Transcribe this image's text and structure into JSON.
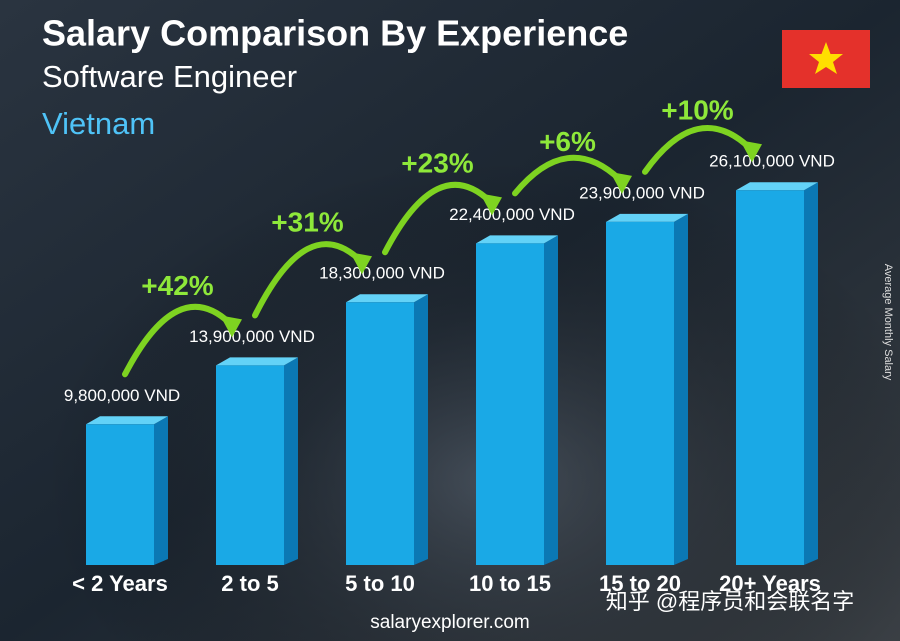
{
  "chart_data": {
    "type": "bar",
    "title": "Salary Comparison By Experience",
    "subtitle": "Software Engineer",
    "country": "Vietnam",
    "y_axis_label": "Average Monthly Salary",
    "categories": [
      "< 2 Years",
      "2 to 5",
      "5 to 10",
      "10 to 15",
      "15 to 20",
      "20+ Years"
    ],
    "values": [
      9800000,
      13900000,
      18300000,
      22400000,
      23900000,
      26100000
    ],
    "value_labels": [
      "9,800,000 VND",
      "13,900,000 VND",
      "18,300,000 VND",
      "22,400,000 VND",
      "23,900,000 VND",
      "26,100,000 VND"
    ],
    "changes": [
      42,
      31,
      23,
      6,
      10
    ],
    "change_labels": [
      "+42%",
      "+31%",
      "+23%",
      "+6%",
      "+10%"
    ],
    "color": "#1aa9e6",
    "ylim": [
      0,
      39000000
    ],
    "footer": "salaryexplorer.com",
    "watermark": "知乎 @程序员和会联名字"
  }
}
